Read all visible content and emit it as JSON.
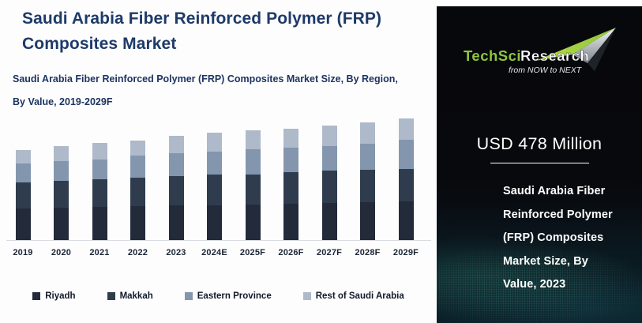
{
  "header": {
    "title": "Saudi Arabia Fiber Reinforced Polymer (FRP) Composites Market",
    "subtitle": "Saudi Arabia Fiber Reinforced Polymer (FRP) Composites Market Size, By Region, By Value, 2019-2029F"
  },
  "chart_data": {
    "type": "bar",
    "stacked": true,
    "title": "Saudi Arabia Fiber Reinforced Polymer (FRP) Composites Market Size, By Region, By Value, 2019-2029F",
    "unit": "USD Million",
    "categories": [
      "2019",
      "2020",
      "2021",
      "2022",
      "2023",
      "2024E",
      "2025F",
      "2026F",
      "2027F",
      "2028F",
      "2029F"
    ],
    "series": [
      {
        "name": "Riyadh",
        "color": "#232b3a",
        "values": [
          147,
          149,
          152,
          157,
          161,
          161,
          163,
          167,
          170,
          174,
          178
        ]
      },
      {
        "name": "Makkah",
        "color": "#2f3c4e",
        "values": [
          119,
          123,
          126,
          131,
          132,
          139,
          139,
          145,
          149,
          149,
          150
        ]
      },
      {
        "name": "Eastern Province",
        "color": "#8396ae",
        "values": [
          86,
          91,
          94,
          101,
          105,
          105,
          115,
          114,
          115,
          119,
          133
        ]
      },
      {
        "name": "Rest of Saudi Arabia",
        "color": "#aeb9ca",
        "values": [
          63,
          68,
          73,
          70,
          80,
          88,
          86,
          87,
          94,
          99,
          99
        ]
      }
    ],
    "totals": [
      415,
      431,
      445,
      459,
      478,
      493,
      503,
      513,
      528,
      541,
      560
    ],
    "ylim": [
      0,
      600
    ],
    "gridlines": false,
    "y_axis_visible": false,
    "legend_position": "bottom"
  },
  "side_panel": {
    "logo": {
      "brand_primary": "TechSci",
      "brand_secondary": "Research",
      "tagline": "from NOW to NEXT",
      "brand_green": "#8dc63f"
    },
    "highlight_value": "USD 478 Million",
    "description_lines": [
      "Saudi Arabia Fiber",
      "Reinforced Polymer",
      "(FRP) Composites",
      "Market Size, By",
      "Value, 2023"
    ]
  },
  "colors": {
    "title_navy": "#1e3a68",
    "panel_background": "#08090d",
    "panel_wave_teal": "#14505a",
    "axis_line": "#d8dbe0"
  }
}
